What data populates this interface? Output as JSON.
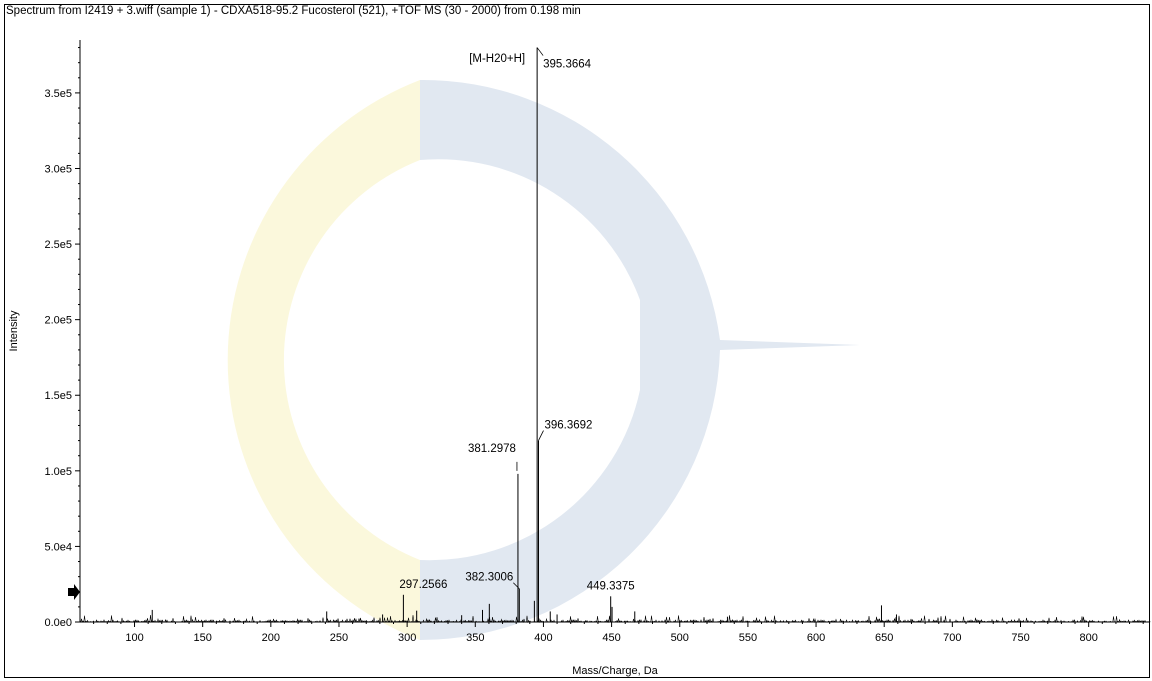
{
  "window": {
    "title": "Spectrum from I2419 + 3.wiff (sample 1) - CDXA518-95.2 Fucosterol (521), +TOF MS (30 - 2000) from 0.198 min"
  },
  "colors": {
    "axis": "#000000",
    "trace": "#000000",
    "watermark_blue": "#dfe6ef",
    "watermark_yellow": "#fbf8dc"
  },
  "chart_data": {
    "type": "line",
    "title": "Spectrum from I2419 + 3.wiff (sample 1) - CDXA518-95.2 Fucosterol (521), +TOF MS (30 - 2000) from 0.198 min",
    "xlabel": "Mass/Charge, Da",
    "ylabel": "Intensity",
    "xlim": [
      60,
      845
    ],
    "ylim": [
      0,
      385000
    ],
    "xticks": [
      100,
      150,
      200,
      250,
      300,
      350,
      400,
      450,
      500,
      550,
      600,
      650,
      700,
      750,
      800
    ],
    "xtick_labels": [
      "100",
      "150",
      "200",
      "250",
      "300",
      "350",
      "400",
      "450",
      "500",
      "550",
      "600",
      "650",
      "700",
      "750",
      "800"
    ],
    "yticks": [
      0,
      50000,
      100000,
      150000,
      200000,
      250000,
      300000,
      350000
    ],
    "ytick_labels": [
      "0.0e0",
      "5.0e4",
      "1.0e5",
      "1.5e5",
      "2.0e5",
      "2.5e5",
      "3.0e5",
      "3.5e5"
    ],
    "peaks": [
      {
        "mz": 395.3664,
        "intensity": 380000,
        "label": "395.3664"
      },
      {
        "mz": 396.3692,
        "intensity": 120000,
        "label": "396.3692"
      },
      {
        "mz": 381.2978,
        "intensity": 98000,
        "label": "381.2978"
      },
      {
        "mz": 382.3006,
        "intensity": 22000,
        "label": "382.3006"
      },
      {
        "mz": 297.2566,
        "intensity": 18000,
        "label": "297.2566"
      },
      {
        "mz": 449.3375,
        "intensity": 17000,
        "label": "449.3375"
      },
      {
        "mz": 393.35,
        "intensity": 14000,
        "label": ""
      },
      {
        "mz": 450.34,
        "intensity": 10000,
        "label": ""
      },
      {
        "mz": 360.3,
        "intensity": 12000,
        "label": ""
      },
      {
        "mz": 355.3,
        "intensity": 8000,
        "label": ""
      },
      {
        "mz": 648.0,
        "intensity": 11000,
        "label": ""
      },
      {
        "mz": 113.0,
        "intensity": 8000,
        "label": ""
      },
      {
        "mz": 241.0,
        "intensity": 7000,
        "label": ""
      },
      {
        "mz": 307.0,
        "intensity": 7500,
        "label": ""
      },
      {
        "mz": 405.0,
        "intensity": 7000,
        "label": ""
      },
      {
        "mz": 467.0,
        "intensity": 7000,
        "label": ""
      },
      {
        "mz": 282.0,
        "intensity": 5000,
        "label": ""
      },
      {
        "mz": 659.0,
        "intensity": 5000,
        "label": ""
      },
      {
        "mz": 340.0,
        "intensity": 4500,
        "label": ""
      },
      {
        "mz": 410.0,
        "intensity": 5000,
        "label": ""
      },
      {
        "mz": 535.0,
        "intensity": 3500,
        "label": ""
      }
    ],
    "annotations": [
      {
        "text": "[M-H20+H]",
        "mz": 395.3664
      }
    ],
    "grid": false,
    "legend": "none"
  }
}
